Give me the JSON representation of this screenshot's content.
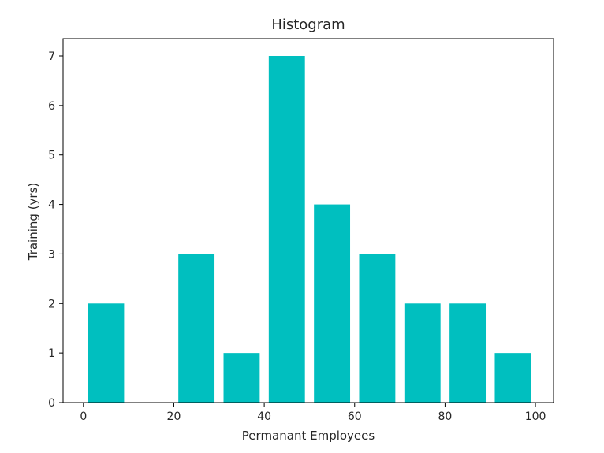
{
  "chart_data": {
    "type": "bar",
    "title": "Histogram",
    "xlabel": "Permanant Employees",
    "ylabel": "Training (yrs)",
    "bin_width": 10,
    "bins": [
      {
        "start": 0,
        "end": 10,
        "value": 2
      },
      {
        "start": 10,
        "end": 20,
        "value": 0
      },
      {
        "start": 20,
        "end": 30,
        "value": 3
      },
      {
        "start": 30,
        "end": 40,
        "value": 1
      },
      {
        "start": 40,
        "end": 50,
        "value": 7
      },
      {
        "start": 50,
        "end": 60,
        "value": 4
      },
      {
        "start": 60,
        "end": 70,
        "value": 3
      },
      {
        "start": 70,
        "end": 80,
        "value": 2
      },
      {
        "start": 80,
        "end": 90,
        "value": 2
      },
      {
        "start": 90,
        "end": 100,
        "value": 1
      }
    ],
    "x_ticks": [
      "0",
      "20",
      "40",
      "60",
      "80",
      "100"
    ],
    "y_ticks": [
      "0",
      "1",
      "2",
      "3",
      "4",
      "5",
      "6",
      "7"
    ],
    "xlim": [
      -4.5,
      104
    ],
    "ylim": [
      0,
      7.35
    ],
    "bar_color": "#00bfbf",
    "grid": false,
    "legend": "none"
  }
}
